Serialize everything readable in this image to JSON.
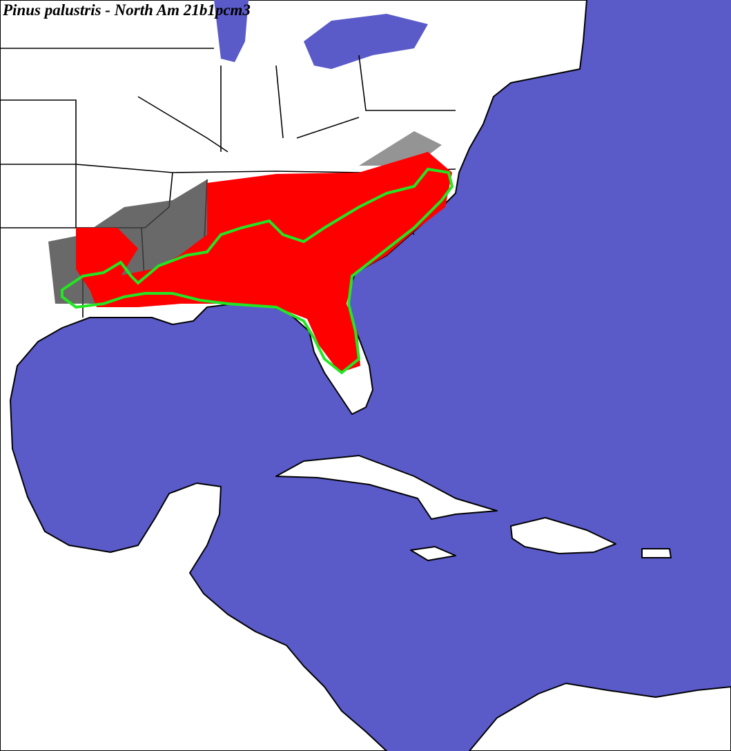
{
  "title": "Pinus palustris - North Am 21b1pcm3"
}
